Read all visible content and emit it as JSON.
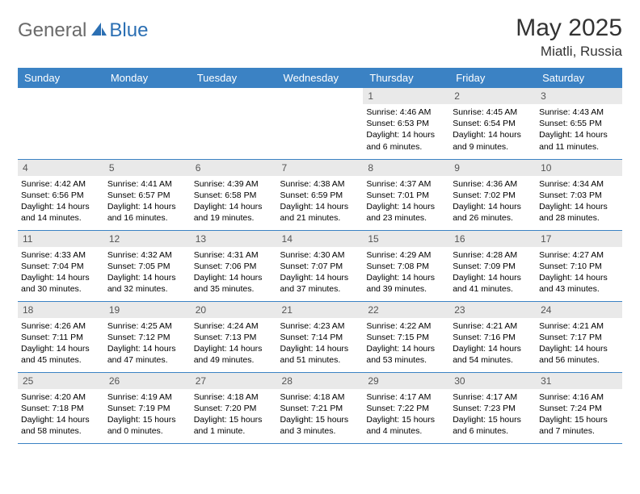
{
  "brand": {
    "general": "General",
    "blue": "Blue"
  },
  "title": "May 2025",
  "location": "Miatli, Russia",
  "colors": {
    "header_bg": "#3b82c4",
    "header_text": "#ffffff",
    "daynum_bg": "#e9e9e9",
    "daynum_text": "#555555",
    "border": "#3b82c4",
    "logo_grey": "#6a6a6a",
    "logo_blue": "#2b6fb3",
    "background": "#ffffff"
  },
  "days_of_week": [
    "Sunday",
    "Monday",
    "Tuesday",
    "Wednesday",
    "Thursday",
    "Friday",
    "Saturday"
  ],
  "weeks": [
    [
      {
        "empty": true
      },
      {
        "empty": true
      },
      {
        "empty": true
      },
      {
        "empty": true
      },
      {
        "n": "1",
        "sunrise": "Sunrise: 4:46 AM",
        "sunset": "Sunset: 6:53 PM",
        "day1": "Daylight: 14 hours",
        "day2": "and 6 minutes."
      },
      {
        "n": "2",
        "sunrise": "Sunrise: 4:45 AM",
        "sunset": "Sunset: 6:54 PM",
        "day1": "Daylight: 14 hours",
        "day2": "and 9 minutes."
      },
      {
        "n": "3",
        "sunrise": "Sunrise: 4:43 AM",
        "sunset": "Sunset: 6:55 PM",
        "day1": "Daylight: 14 hours",
        "day2": "and 11 minutes."
      }
    ],
    [
      {
        "n": "4",
        "sunrise": "Sunrise: 4:42 AM",
        "sunset": "Sunset: 6:56 PM",
        "day1": "Daylight: 14 hours",
        "day2": "and 14 minutes."
      },
      {
        "n": "5",
        "sunrise": "Sunrise: 4:41 AM",
        "sunset": "Sunset: 6:57 PM",
        "day1": "Daylight: 14 hours",
        "day2": "and 16 minutes."
      },
      {
        "n": "6",
        "sunrise": "Sunrise: 4:39 AM",
        "sunset": "Sunset: 6:58 PM",
        "day1": "Daylight: 14 hours",
        "day2": "and 19 minutes."
      },
      {
        "n": "7",
        "sunrise": "Sunrise: 4:38 AM",
        "sunset": "Sunset: 6:59 PM",
        "day1": "Daylight: 14 hours",
        "day2": "and 21 minutes."
      },
      {
        "n": "8",
        "sunrise": "Sunrise: 4:37 AM",
        "sunset": "Sunset: 7:01 PM",
        "day1": "Daylight: 14 hours",
        "day2": "and 23 minutes."
      },
      {
        "n": "9",
        "sunrise": "Sunrise: 4:36 AM",
        "sunset": "Sunset: 7:02 PM",
        "day1": "Daylight: 14 hours",
        "day2": "and 26 minutes."
      },
      {
        "n": "10",
        "sunrise": "Sunrise: 4:34 AM",
        "sunset": "Sunset: 7:03 PM",
        "day1": "Daylight: 14 hours",
        "day2": "and 28 minutes."
      }
    ],
    [
      {
        "n": "11",
        "sunrise": "Sunrise: 4:33 AM",
        "sunset": "Sunset: 7:04 PM",
        "day1": "Daylight: 14 hours",
        "day2": "and 30 minutes."
      },
      {
        "n": "12",
        "sunrise": "Sunrise: 4:32 AM",
        "sunset": "Sunset: 7:05 PM",
        "day1": "Daylight: 14 hours",
        "day2": "and 32 minutes."
      },
      {
        "n": "13",
        "sunrise": "Sunrise: 4:31 AM",
        "sunset": "Sunset: 7:06 PM",
        "day1": "Daylight: 14 hours",
        "day2": "and 35 minutes."
      },
      {
        "n": "14",
        "sunrise": "Sunrise: 4:30 AM",
        "sunset": "Sunset: 7:07 PM",
        "day1": "Daylight: 14 hours",
        "day2": "and 37 minutes."
      },
      {
        "n": "15",
        "sunrise": "Sunrise: 4:29 AM",
        "sunset": "Sunset: 7:08 PM",
        "day1": "Daylight: 14 hours",
        "day2": "and 39 minutes."
      },
      {
        "n": "16",
        "sunrise": "Sunrise: 4:28 AM",
        "sunset": "Sunset: 7:09 PM",
        "day1": "Daylight: 14 hours",
        "day2": "and 41 minutes."
      },
      {
        "n": "17",
        "sunrise": "Sunrise: 4:27 AM",
        "sunset": "Sunset: 7:10 PM",
        "day1": "Daylight: 14 hours",
        "day2": "and 43 minutes."
      }
    ],
    [
      {
        "n": "18",
        "sunrise": "Sunrise: 4:26 AM",
        "sunset": "Sunset: 7:11 PM",
        "day1": "Daylight: 14 hours",
        "day2": "and 45 minutes."
      },
      {
        "n": "19",
        "sunrise": "Sunrise: 4:25 AM",
        "sunset": "Sunset: 7:12 PM",
        "day1": "Daylight: 14 hours",
        "day2": "and 47 minutes."
      },
      {
        "n": "20",
        "sunrise": "Sunrise: 4:24 AM",
        "sunset": "Sunset: 7:13 PM",
        "day1": "Daylight: 14 hours",
        "day2": "and 49 minutes."
      },
      {
        "n": "21",
        "sunrise": "Sunrise: 4:23 AM",
        "sunset": "Sunset: 7:14 PM",
        "day1": "Daylight: 14 hours",
        "day2": "and 51 minutes."
      },
      {
        "n": "22",
        "sunrise": "Sunrise: 4:22 AM",
        "sunset": "Sunset: 7:15 PM",
        "day1": "Daylight: 14 hours",
        "day2": "and 53 minutes."
      },
      {
        "n": "23",
        "sunrise": "Sunrise: 4:21 AM",
        "sunset": "Sunset: 7:16 PM",
        "day1": "Daylight: 14 hours",
        "day2": "and 54 minutes."
      },
      {
        "n": "24",
        "sunrise": "Sunrise: 4:21 AM",
        "sunset": "Sunset: 7:17 PM",
        "day1": "Daylight: 14 hours",
        "day2": "and 56 minutes."
      }
    ],
    [
      {
        "n": "25",
        "sunrise": "Sunrise: 4:20 AM",
        "sunset": "Sunset: 7:18 PM",
        "day1": "Daylight: 14 hours",
        "day2": "and 58 minutes."
      },
      {
        "n": "26",
        "sunrise": "Sunrise: 4:19 AM",
        "sunset": "Sunset: 7:19 PM",
        "day1": "Daylight: 15 hours",
        "day2": "and 0 minutes."
      },
      {
        "n": "27",
        "sunrise": "Sunrise: 4:18 AM",
        "sunset": "Sunset: 7:20 PM",
        "day1": "Daylight: 15 hours",
        "day2": "and 1 minute."
      },
      {
        "n": "28",
        "sunrise": "Sunrise: 4:18 AM",
        "sunset": "Sunset: 7:21 PM",
        "day1": "Daylight: 15 hours",
        "day2": "and 3 minutes."
      },
      {
        "n": "29",
        "sunrise": "Sunrise: 4:17 AM",
        "sunset": "Sunset: 7:22 PM",
        "day1": "Daylight: 15 hours",
        "day2": "and 4 minutes."
      },
      {
        "n": "30",
        "sunrise": "Sunrise: 4:17 AM",
        "sunset": "Sunset: 7:23 PM",
        "day1": "Daylight: 15 hours",
        "day2": "and 6 minutes."
      },
      {
        "n": "31",
        "sunrise": "Sunrise: 4:16 AM",
        "sunset": "Sunset: 7:24 PM",
        "day1": "Daylight: 15 hours",
        "day2": "and 7 minutes."
      }
    ]
  ]
}
